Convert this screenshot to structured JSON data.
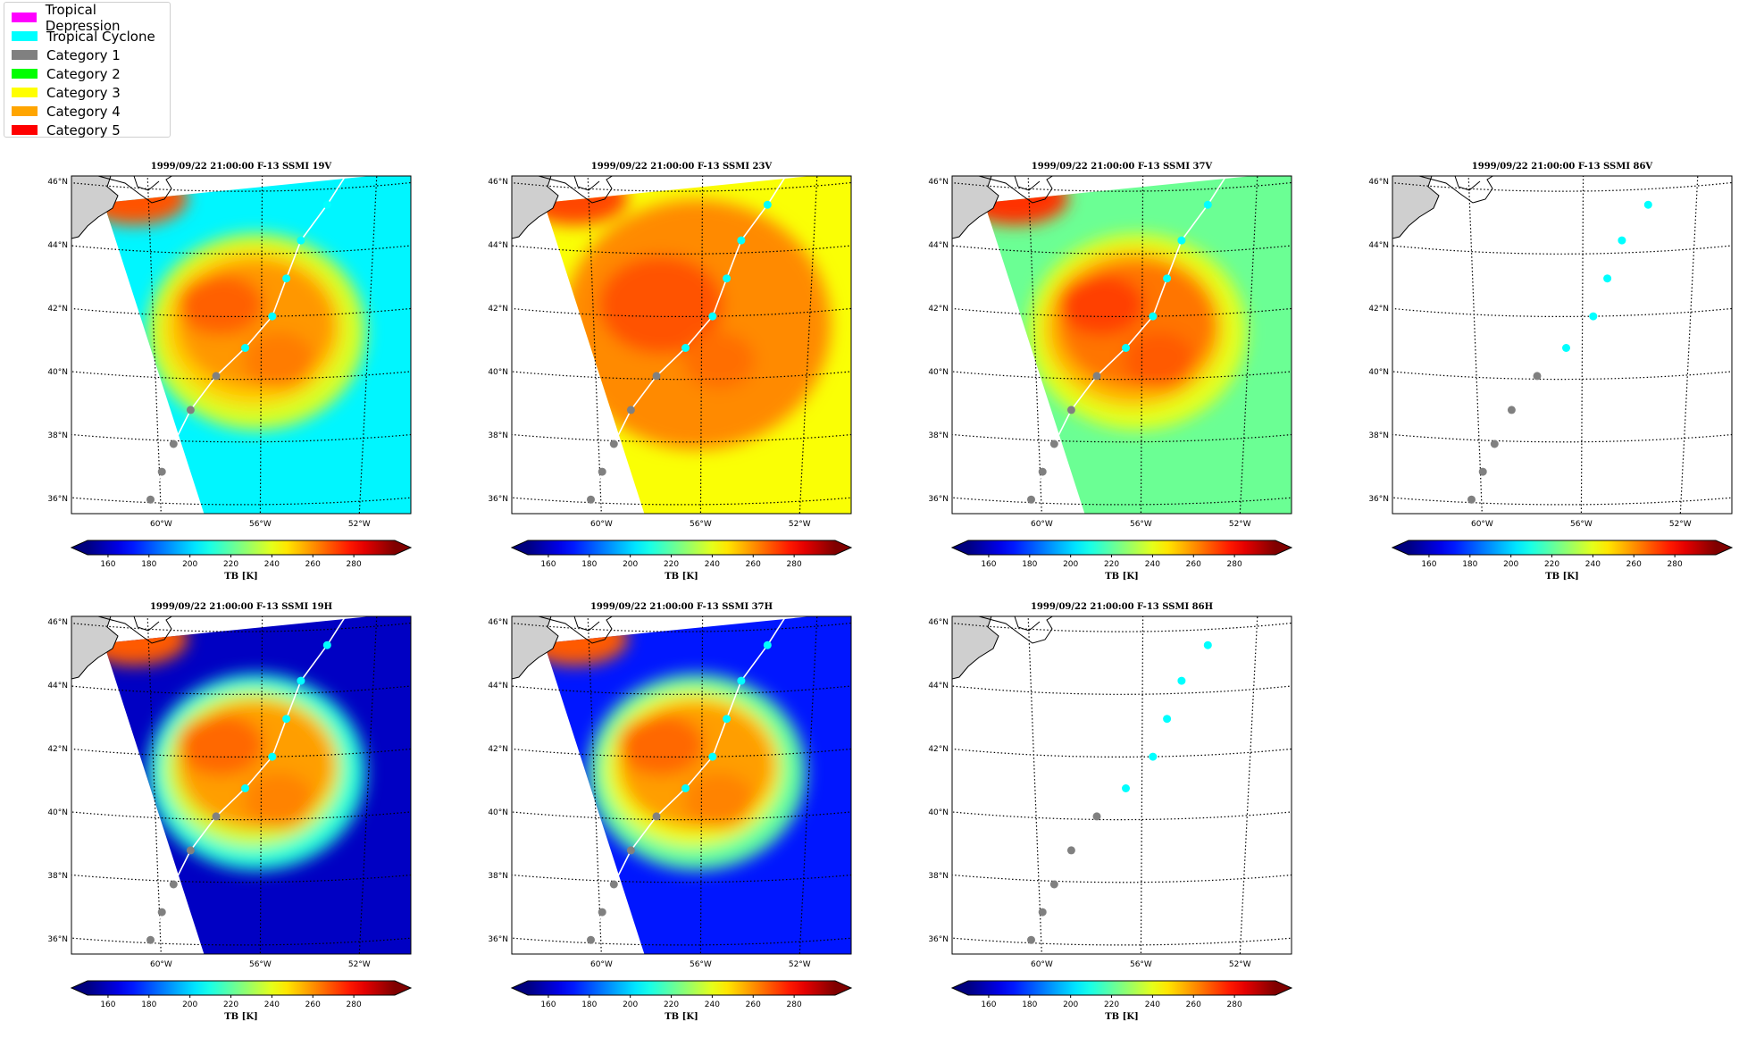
{
  "legend": {
    "items": [
      {
        "label": "Tropical Depression",
        "color": "#ff00ff"
      },
      {
        "label": "Tropical Cyclone",
        "color": "#00ffff"
      },
      {
        "label": "Category 1",
        "color": "#808080"
      },
      {
        "label": "Category 2",
        "color": "#00ff00"
      },
      {
        "label": "Category 3",
        "color": "#ffff00"
      },
      {
        "label": "Category 4",
        "color": "#ffa500"
      },
      {
        "label": "Category 5",
        "color": "#ff0000"
      }
    ]
  },
  "chart_data": {
    "type": "map",
    "track": {
      "points": [
        {
          "lon": -60.4,
          "lat": 36.1,
          "category": "Category 1"
        },
        {
          "lon": -59.9,
          "lat": 37.0,
          "category": "Category 1"
        },
        {
          "lon": -59.4,
          "lat": 37.9,
          "category": "Category 1"
        },
        {
          "lon": -58.7,
          "lat": 39.0,
          "category": "Category 1"
        },
        {
          "lon": -57.7,
          "lat": 40.1,
          "category": "Category 1"
        },
        {
          "lon": -56.6,
          "lat": 41.0,
          "category": "Tropical Cyclone"
        },
        {
          "lon": -55.6,
          "lat": 42.0,
          "category": "Tropical Cyclone"
        },
        {
          "lon": -55.1,
          "lat": 43.2,
          "category": "Tropical Cyclone"
        },
        {
          "lon": -54.6,
          "lat": 44.4,
          "category": "Tropical Cyclone"
        },
        {
          "lon": -53.7,
          "lat": 45.5,
          "category": "Tropical Cyclone"
        }
      ]
    },
    "axes": {
      "lat_ticks": [
        "36°N",
        "38°N",
        "40°N",
        "42°N",
        "44°N",
        "46°N"
      ],
      "lon_ticks": [
        "60°W",
        "56°W",
        "52°W"
      ]
    },
    "colorbar": {
      "label": "TB [K]",
      "ticks": [
        "160",
        "180",
        "200",
        "220",
        "240",
        "260",
        "280"
      ],
      "range": [
        150,
        300
      ],
      "colormap": "jet"
    },
    "panels": [
      {
        "title": "1999/09/22 21:00:00  F-13 SSMI 19V",
        "has_data": true,
        "background_temp": 205,
        "core_temp": 263,
        "ring_temp": 238,
        "swath": true,
        "structure": "compact"
      },
      {
        "title": "1999/09/22 21:00:00  F-13 SSMI 23V",
        "has_data": true,
        "background_temp": 243,
        "core_temp": 265,
        "ring_temp": 256,
        "swath": true,
        "structure": "broad"
      },
      {
        "title": "1999/09/22 21:00:00  F-13 SSMI 37V",
        "has_data": true,
        "background_temp": 222,
        "core_temp": 268,
        "ring_temp": 240,
        "swath": true,
        "structure": "compact"
      },
      {
        "title": "1999/09/22 21:00:00  F-13 SSMI 86V",
        "has_data": false
      },
      {
        "title": "1999/09/22 21:00:00  F-13 SSMI 19H",
        "has_data": true,
        "background_temp": 160,
        "core_temp": 262,
        "ring_temp": 212,
        "swath": true,
        "structure": "ring"
      },
      {
        "title": "1999/09/22 21:00:00  F-13 SSMI 37H",
        "has_data": true,
        "background_temp": 172,
        "core_temp": 262,
        "ring_temp": 220,
        "swath": true,
        "structure": "ring"
      },
      {
        "title": "1999/09/22 21:00:00  F-13 SSMI 86H",
        "has_data": false
      }
    ]
  }
}
